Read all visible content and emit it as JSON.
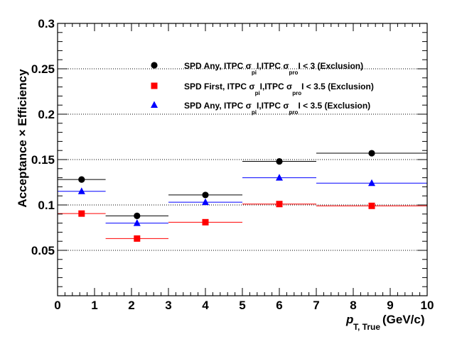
{
  "chart_data": {
    "type": "scatter",
    "xlabel_main": "p",
    "xlabel_sub": "T, True",
    "xlabel_unit": "(GeV/c)",
    "ylabel": "Acceptance × Efficiency",
    "xlim": [
      0,
      10
    ],
    "ylim": [
      0,
      0.3
    ],
    "x_ticks": [
      "0",
      "1",
      "2",
      "3",
      "4",
      "5",
      "6",
      "7",
      "8",
      "9",
      "10"
    ],
    "y_ticks": [
      "0.05",
      "0.1",
      "0.15",
      "0.2",
      "0.25",
      "0.3"
    ],
    "grid": "horizontal-dotted",
    "legend_placement": "top-right",
    "bins": [
      {
        "low": 0,
        "high": 1.3,
        "center": 0.65
      },
      {
        "low": 1.3,
        "high": 3.0,
        "center": 2.15
      },
      {
        "low": 3.0,
        "high": 5.0,
        "center": 4.0
      },
      {
        "low": 5.0,
        "high": 7.0,
        "center": 6.0
      },
      {
        "low": 7.0,
        "high": 10.0,
        "center": 8.5
      }
    ],
    "series": [
      {
        "legend": {
          "prefix": "SPD Any, ITPC σ",
          "sub1": "pi",
          "mid": "I,ITPC σ",
          "sub2": "pro",
          "suffix": "I < 3 (Exclusion)"
        },
        "marker": "circle",
        "color": "#000000",
        "values": [
          0.128,
          0.088,
          0.111,
          0.148,
          0.157
        ]
      },
      {
        "legend": {
          "prefix": "SPD First, ITPC σ",
          "sub1": "pi",
          "mid": "I,ITPC σ",
          "sub2": "pro",
          "suffix": "I < 3.5 (Exclusion)"
        },
        "marker": "square",
        "color": "#ff0000",
        "values": [
          0.0905,
          0.063,
          0.081,
          0.101,
          0.099
        ]
      },
      {
        "legend": {
          "prefix": "SPD Any, ITPC σ",
          "sub1": "pi",
          "mid": "I,ITPC σ",
          "sub2": "pro",
          "suffix": "I < 3.5 (Exclusion)"
        },
        "marker": "triangle",
        "color": "#0000ff",
        "values": [
          0.115,
          0.08,
          0.103,
          0.13,
          0.124
        ]
      }
    ]
  }
}
